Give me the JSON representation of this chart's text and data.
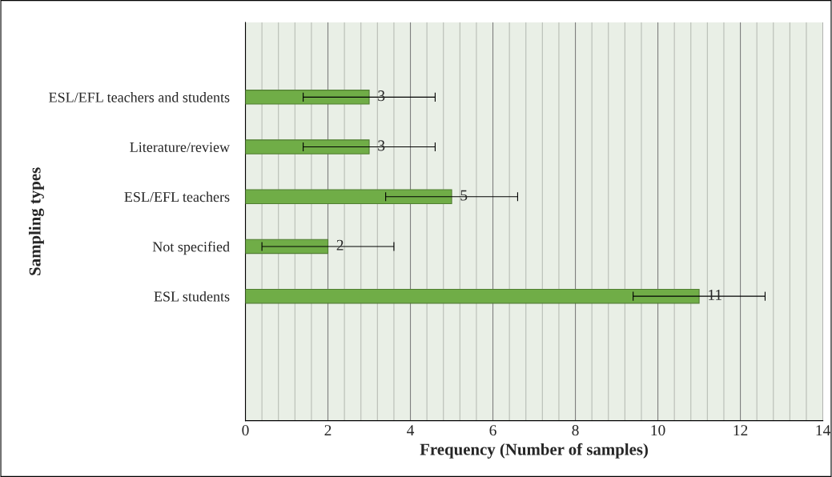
{
  "chart_data": {
    "type": "bar",
    "orientation": "horizontal",
    "xlabel": "Frequency (Number of samples)",
    "ylabel": "Sampling types",
    "categories": [
      null,
      "ESL/EFL teachers and students",
      "Literature/review",
      "ESL/EFL teachers",
      "Not specified",
      "ESL students",
      null,
      null
    ],
    "values": [
      null,
      3,
      3,
      5,
      2,
      11,
      null,
      null
    ],
    "errors": [
      null,
      1.6,
      1.6,
      1.6,
      1.6,
      1.6,
      null,
      null
    ],
    "color": "#70ad47",
    "xlim": [
      0,
      14
    ],
    "xticks": [
      0,
      {
        "value": 0.4,
        "label": null
      },
      {
        "value": 0.8,
        "label": null
      },
      {
        "value": 1.2,
        "label": null
      },
      {
        "value": 1.6,
        "label": null
      },
      2,
      {
        "value": 2.4,
        "label": null
      },
      {
        "value": 2.8,
        "label": null
      },
      {
        "value": 3.2,
        "label": null
      },
      {
        "value": 3.6,
        "label": null
      },
      4,
      {
        "value": 4.4,
        "label": null
      },
      {
        "value": 4.8,
        "label": null
      },
      {
        "value": 5.2,
        "label": null
      },
      {
        "value": 5.6,
        "label": null
      },
      6,
      {
        "value": 6.4,
        "label": null
      },
      {
        "value": 6.8,
        "label": null
      },
      {
        "value": 7.2,
        "label": null
      },
      {
        "value": 7.6,
        "label": null
      },
      8,
      {
        "value": 8.4,
        "label": null
      },
      {
        "value": 8.8,
        "label": null
      },
      {
        "value": 9.2,
        "label": null
      },
      {
        "value": 9.6,
        "label": null
      },
      10,
      {
        "value": 10.4,
        "label": null
      },
      {
        "value": 10.8,
        "label": null
      },
      {
        "value": 11.2,
        "label": null
      },
      {
        "value": 11.6,
        "label": null
      },
      12,
      {
        "value": 12.4,
        "label": null
      },
      {
        "value": 12.8,
        "label": null
      },
      {
        "value": 13.2,
        "label": null
      },
      {
        "value": 13.6,
        "label": null
      },
      14
    ],
    "grid": "x",
    "data_labels": true,
    "legend": false
  }
}
